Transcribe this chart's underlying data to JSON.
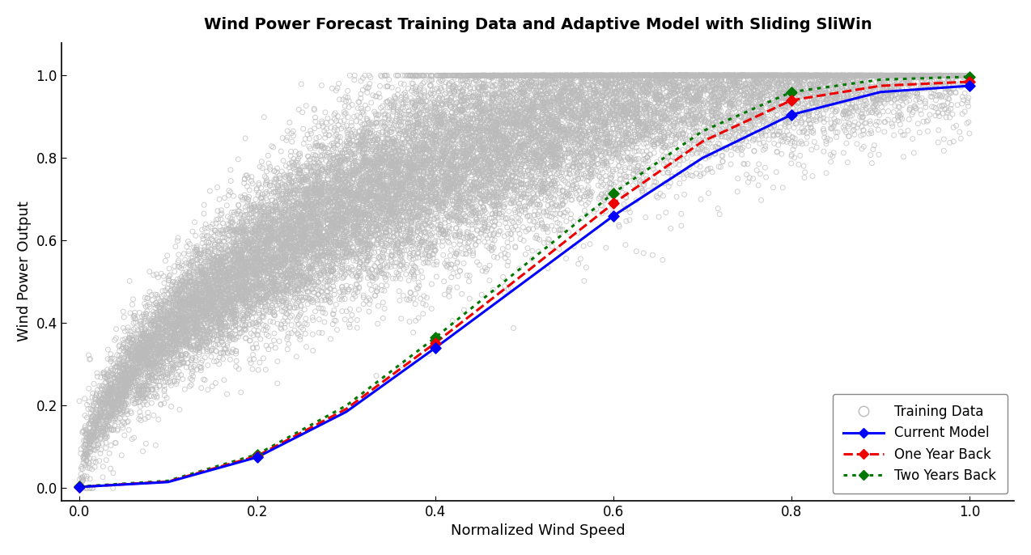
{
  "title": "Wind Power Forecast Training Data and Adaptive Model with Sliding SliWin",
  "xlabel": "Normalized Wind Speed",
  "ylabel": "Wind Power Output",
  "xlim": [
    -0.02,
    1.05
  ],
  "ylim": [
    -0.03,
    1.08
  ],
  "xticks": [
    0.0,
    0.2,
    0.4,
    0.6,
    0.8,
    1.0
  ],
  "yticks": [
    0.0,
    0.2,
    0.4,
    0.6,
    0.8,
    1.0
  ],
  "background_color": "#ffffff",
  "scatter_color": "#bbbbbb",
  "current_model_color": "#0000ff",
  "one_year_color": "#ee0000",
  "two_years_color": "#007700",
  "curve_x": [
    0.0,
    0.1,
    0.2,
    0.3,
    0.4,
    0.5,
    0.6,
    0.7,
    0.8,
    0.9,
    1.0
  ],
  "current_model_y": [
    0.003,
    0.015,
    0.075,
    0.185,
    0.34,
    0.5,
    0.66,
    0.8,
    0.905,
    0.96,
    0.975
  ],
  "one_year_y": [
    0.003,
    0.016,
    0.078,
    0.192,
    0.352,
    0.52,
    0.69,
    0.84,
    0.94,
    0.975,
    0.985
  ],
  "two_years_y": [
    0.004,
    0.018,
    0.082,
    0.2,
    0.365,
    0.54,
    0.715,
    0.865,
    0.96,
    0.99,
    0.997
  ],
  "marker_x": [
    0.0,
    0.2,
    0.4,
    0.6,
    0.8,
    1.0
  ],
  "current_marker_y": [
    0.003,
    0.075,
    0.34,
    0.66,
    0.905,
    0.975
  ],
  "one_year_marker_y": [
    0.003,
    0.078,
    0.352,
    0.69,
    0.94,
    0.985
  ],
  "two_years_marker_y": [
    0.004,
    0.082,
    0.365,
    0.715,
    0.96,
    0.997
  ],
  "legend_labels": [
    "Training Data",
    "Current Model",
    "One Year Back",
    "Two Years Back"
  ],
  "title_fontsize": 14,
  "label_fontsize": 13,
  "tick_fontsize": 12
}
